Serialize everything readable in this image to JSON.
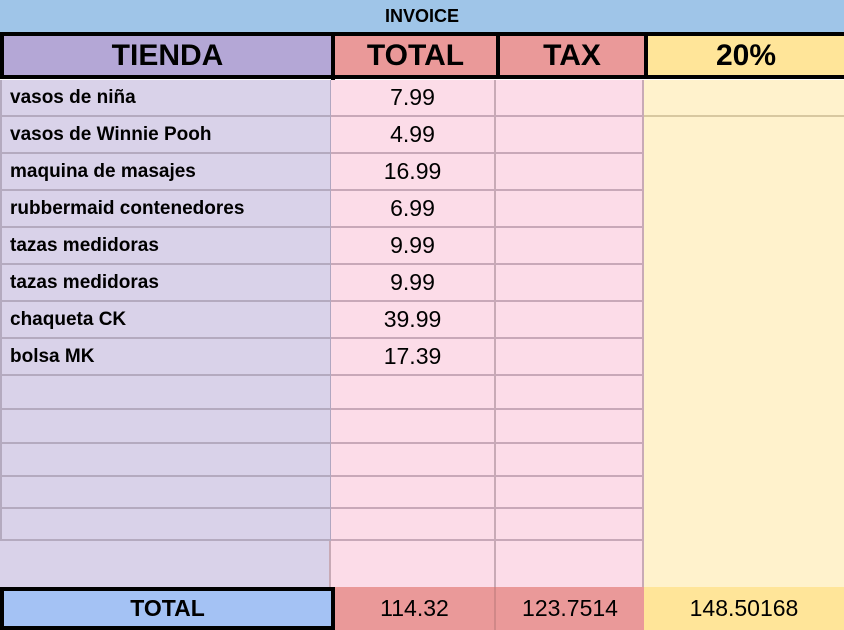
{
  "title": "INVOICE",
  "headers": {
    "store": "TIENDA",
    "total": "TOTAL",
    "tax": "TAX",
    "percent": "20%"
  },
  "items": [
    {
      "name": "vasos de niña",
      "total": "7.99",
      "tax": ""
    },
    {
      "name": "vasos de Winnie Pooh",
      "total": "4.99",
      "tax": ""
    },
    {
      "name": "maquina de masajes",
      "total": "16.99",
      "tax": ""
    },
    {
      "name": "rubbermaid contenedores",
      "total": "6.99",
      "tax": ""
    },
    {
      "name": "tazas medidoras",
      "total": "9.99",
      "tax": ""
    },
    {
      "name": "tazas medidoras",
      "total": "9.99",
      "tax": ""
    },
    {
      "name": "chaqueta CK",
      "total": "39.99",
      "tax": ""
    },
    {
      "name": "bolsa MK",
      "total": "17.39",
      "tax": ""
    }
  ],
  "totals": {
    "label": "TOTAL",
    "total": "114.32",
    "tax": "123.7514",
    "percent": "148.50168"
  },
  "colors": {
    "title_bg": "#9fc5e8",
    "store_header": "#b4a7d6",
    "total_header": "#ea9999",
    "percent_header": "#ffe599",
    "store_body": "#d9d2e9",
    "total_body": "#fcdce8",
    "percent_body": "#fff2cc",
    "total_label_bg": "#a4c2f4"
  }
}
